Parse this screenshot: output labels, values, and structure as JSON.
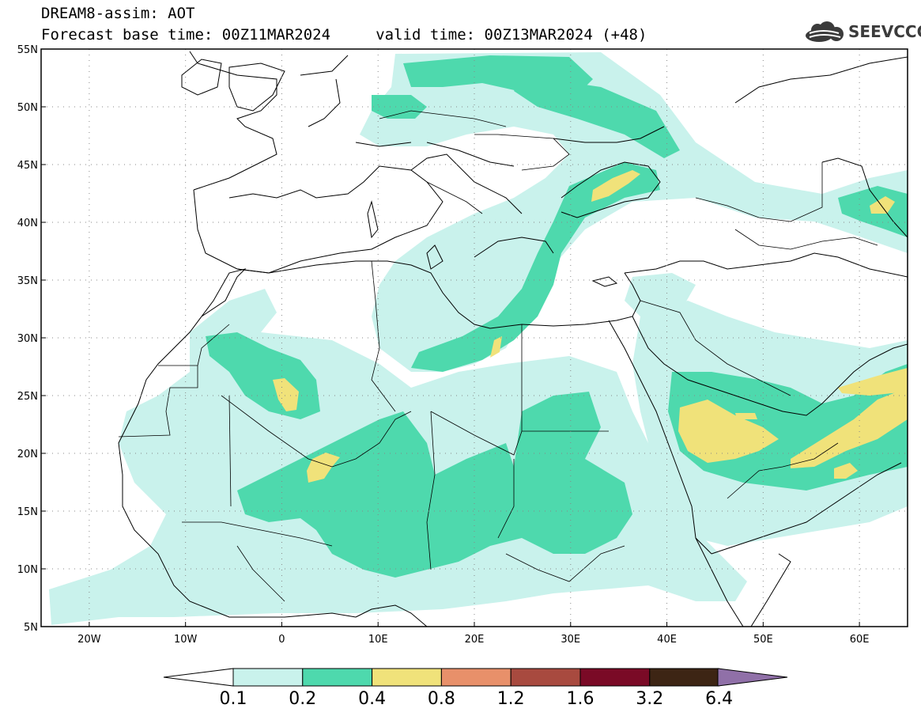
{
  "title_line1": "DREAM8-assim: AOT",
  "title_line2": "Forecast base time: 00Z11MAR2024     valid time: 00Z13MAR2024 (+48)",
  "logo_text": "SEEVCCC",
  "map": {
    "lon_range": [
      -25,
      65
    ],
    "lat_range": [
      5,
      55
    ],
    "lat_labels": [
      "55N",
      "50N",
      "45N",
      "40N",
      "35N",
      "30N",
      "25N",
      "20N",
      "15N",
      "10N",
      "5N"
    ],
    "lon_labels": [
      "20W",
      "10W",
      "0",
      "10E",
      "20E",
      "30E",
      "40E",
      "50E",
      "60E"
    ],
    "lat_values": [
      55,
      50,
      45,
      40,
      35,
      30,
      25,
      20,
      15,
      10,
      5
    ],
    "lon_values": [
      -20,
      -10,
      0,
      10,
      20,
      30,
      40,
      50,
      60
    ]
  },
  "colorbar": {
    "labels": [
      "0.1",
      "0.2",
      "0.4",
      "0.8",
      "1.2",
      "1.6",
      "3.2",
      "6.4"
    ],
    "colors": [
      "#c9f2ec",
      "#4ed9ad",
      "#f0e27a",
      "#e8906a",
      "#a84a3f",
      "#7a0a26",
      "#3d2514",
      "#9070a8"
    ]
  },
  "colors": {
    "level1": "#c9f2ec",
    "level2": "#4ed9ad",
    "level3": "#f0e27a"
  }
}
